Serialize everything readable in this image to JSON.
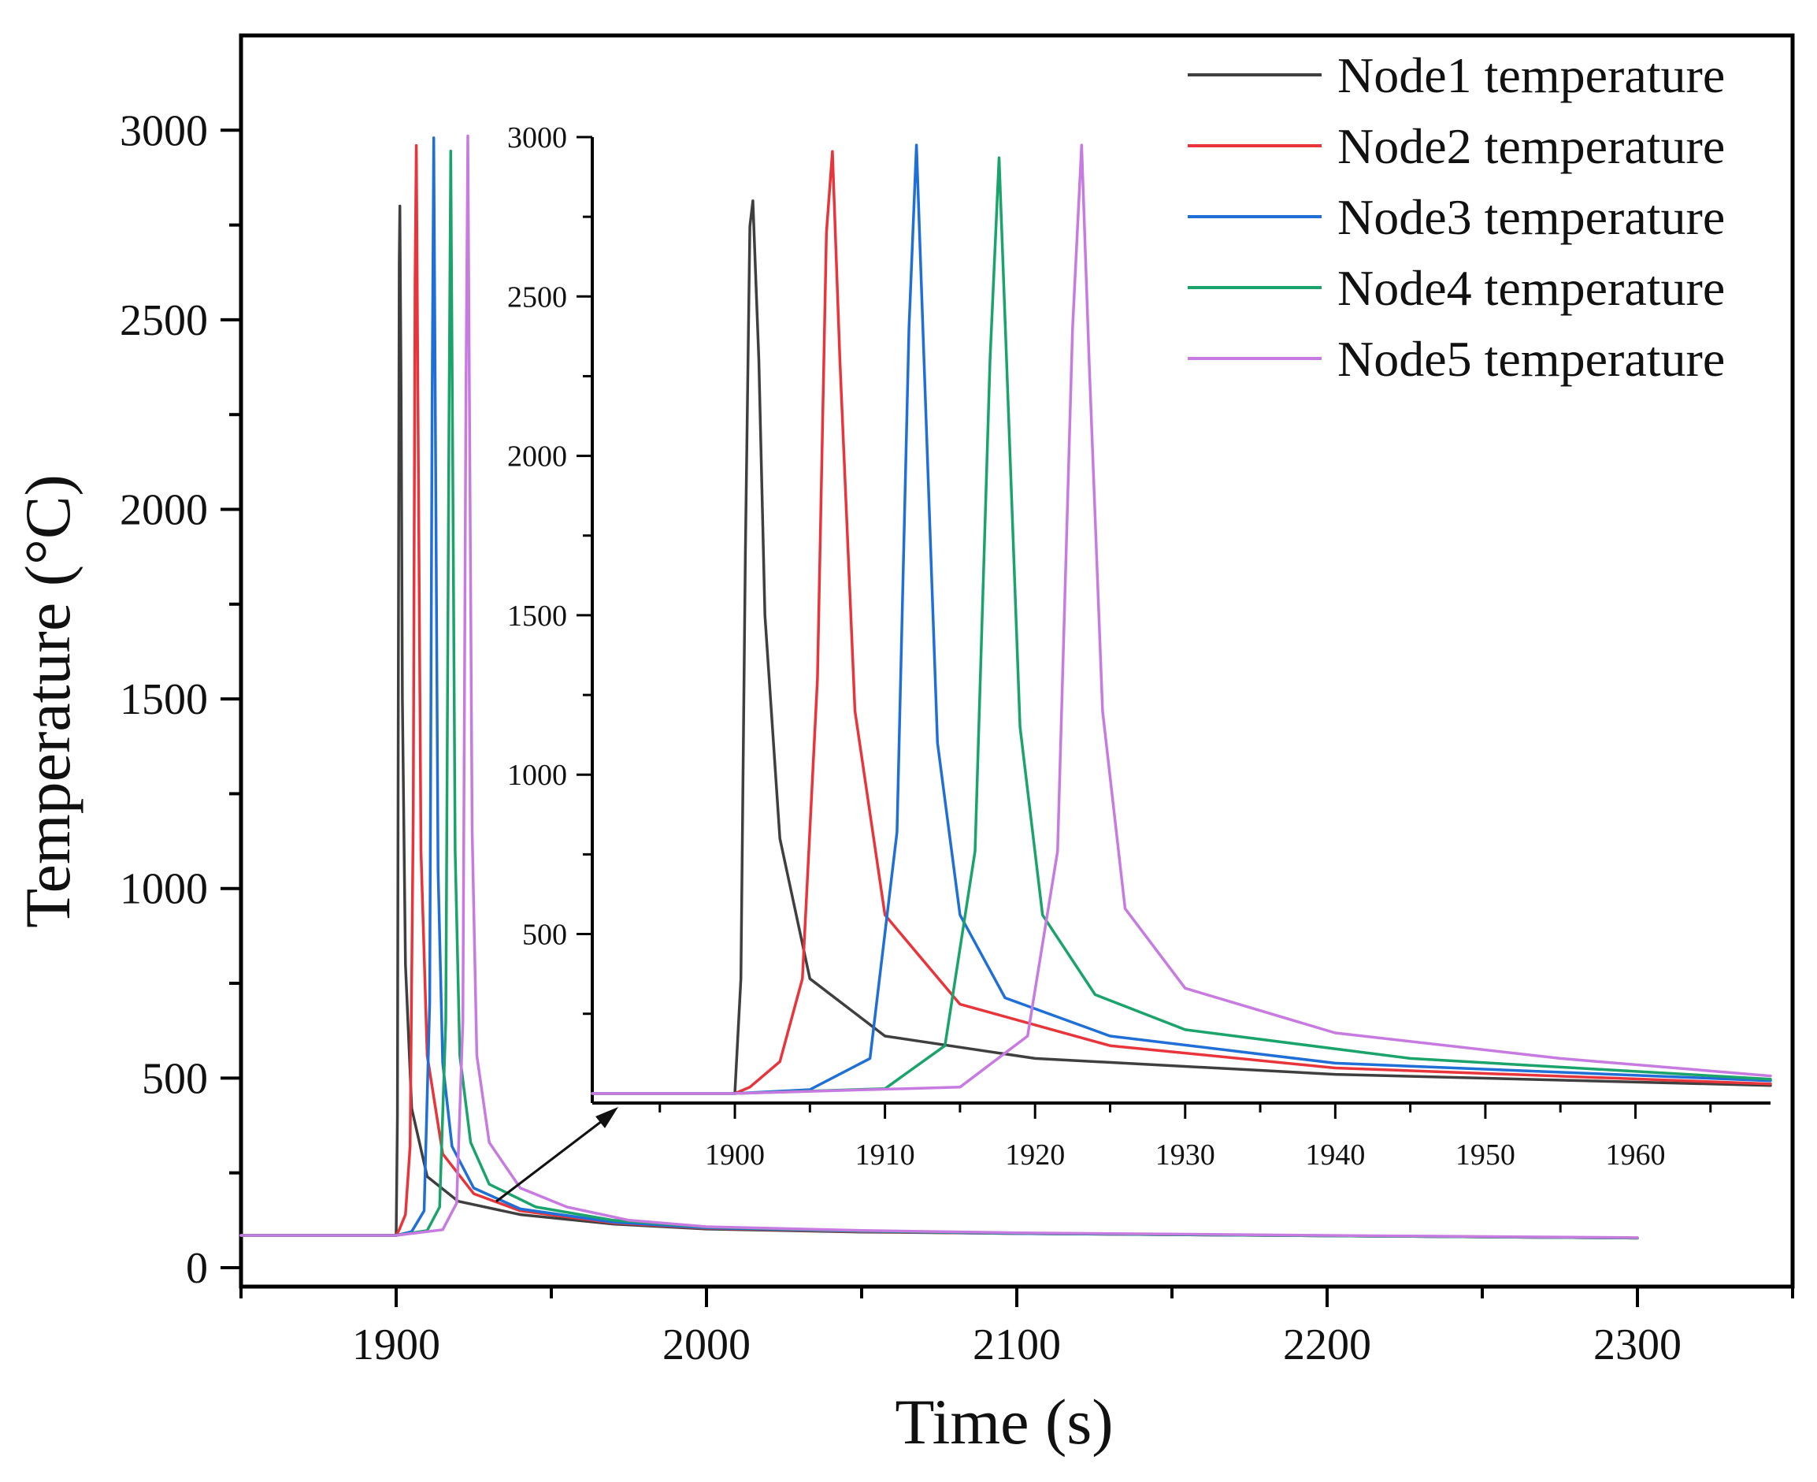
{
  "chart_data": [
    {
      "id": "main",
      "type": "line",
      "title": "",
      "xlabel": "Time (s)",
      "ylabel": "Temperature (°C)",
      "xlim": [
        1850,
        2350
      ],
      "ylim": [
        -50,
        3250
      ],
      "x_ticks": [
        1900,
        2000,
        2100,
        2200,
        2300
      ],
      "x_tick_labels": [
        "1900",
        "2000",
        "2100",
        "2200",
        "2300"
      ],
      "y_ticks": [
        0,
        500,
        1000,
        1500,
        2000,
        2500,
        3000
      ],
      "y_tick_labels": [
        "0",
        "500",
        "1000",
        "1500",
        "2000",
        "2500",
        "3000"
      ],
      "grid": false,
      "legend_position": "top-right",
      "series": [
        {
          "name": "Node1 temperature",
          "color": "#3f3f3f",
          "x": [
            1850,
            1900,
            1900.4,
            1900.7,
            1901,
            1901.2,
            1901.6,
            1902,
            1903,
            1905,
            1910,
            1920,
            1940,
            1970,
            2000,
            2050,
            2100,
            2200,
            2300
          ],
          "y": [
            85,
            85,
            400,
            1600,
            2650,
            2800,
            2300,
            1500,
            800,
            420,
            240,
            175,
            140,
            115,
            102,
            94,
            90,
            84,
            78
          ]
        },
        {
          "name": "Node2 temperature",
          "color": "#e8353b",
          "x": [
            1850,
            1900,
            1901,
            1903,
            1904.5,
            1905.5,
            1906.1,
            1906.5,
            1907,
            1908,
            1910,
            1915,
            1925,
            1940,
            1970,
            2000,
            2050,
            2100,
            2200,
            2300
          ],
          "y": [
            85,
            85,
            100,
            140,
            320,
            1200,
            2600,
            2960,
            2300,
            1100,
            560,
            300,
            195,
            150,
            118,
            104,
            95,
            90,
            84,
            78
          ]
        },
        {
          "name": "Node3 temperature",
          "color": "#1f6fd6",
          "x": [
            1850,
            1900,
            1905,
            1909,
            1910.8,
            1911.6,
            1912.1,
            1912.6,
            1913.5,
            1915,
            1918,
            1925,
            1940,
            1970,
            2000,
            2050,
            2100,
            2200,
            2300
          ],
          "y": [
            85,
            85,
            95,
            150,
            700,
            2300,
            2980,
            2300,
            1050,
            540,
            320,
            210,
            155,
            120,
            105,
            96,
            90,
            84,
            78
          ]
        },
        {
          "name": "Node4 temperature",
          "color": "#1aa36a",
          "x": [
            1850,
            1900,
            1910,
            1914,
            1916,
            1917,
            1917.6,
            1918.1,
            1919,
            1920.5,
            1924,
            1930,
            1945,
            1970,
            2000,
            2050,
            2100,
            2200,
            2300
          ],
          "y": [
            85,
            85,
            98,
            160,
            650,
            2200,
            2945,
            2300,
            1100,
            560,
            330,
            220,
            160,
            125,
            107,
            97,
            91,
            84,
            78
          ]
        },
        {
          "name": "Node5 temperature",
          "color": "#c77ae0",
          "x": [
            1850,
            1900,
            1915,
            1919.5,
            1921.5,
            1922.5,
            1923.1,
            1923.6,
            1924.5,
            1926,
            1930,
            1940,
            1955,
            1975,
            2000,
            2050,
            2100,
            2200,
            2300
          ],
          "y": [
            85,
            85,
            100,
            170,
            650,
            2300,
            2985,
            2300,
            1150,
            560,
            330,
            210,
            160,
            125,
            108,
            98,
            92,
            85,
            79
          ]
        }
      ]
    },
    {
      "id": "inset",
      "type": "line",
      "title": "",
      "xlabel": "",
      "ylabel": "",
      "xlim": [
        1890.5,
        1969
      ],
      "ylim": [
        -30,
        3000
      ],
      "x_ticks": [
        1900,
        1910,
        1920,
        1930,
        1940,
        1950,
        1960
      ],
      "x_tick_labels": [
        "1900",
        "1910",
        "1920",
        "1930",
        "1940",
        "1950",
        "1960"
      ],
      "y_ticks": [
        500,
        1000,
        1500,
        2000,
        2500,
        3000
      ],
      "y_tick_labels": [
        "500",
        "1000",
        "1500",
        "2000",
        "2500",
        "3000"
      ],
      "grid": false,
      "series": [
        {
          "name": "Node1 temperature",
          "color": "#3f3f3f",
          "x": [
            1890.5,
            1900,
            1900.4,
            1900.7,
            1901,
            1901.2,
            1901.6,
            1902,
            1903,
            1905,
            1910,
            1920,
            1940,
            1969
          ],
          "y": [
            0,
            0,
            360,
            1700,
            2720,
            2800,
            2300,
            1500,
            800,
            360,
            180,
            110,
            60,
            25
          ]
        },
        {
          "name": "Node2 temperature",
          "color": "#e8353b",
          "x": [
            1890.5,
            1900,
            1901,
            1903,
            1904.5,
            1905.5,
            1906.1,
            1906.5,
            1907,
            1908,
            1910,
            1915,
            1925,
            1940,
            1969
          ],
          "y": [
            0,
            0,
            20,
            100,
            360,
            1300,
            2700,
            2955,
            2300,
            1200,
            560,
            280,
            150,
            80,
            30
          ]
        },
        {
          "name": "Node3 temperature",
          "color": "#1f6fd6",
          "x": [
            1890.5,
            1900,
            1905,
            1909,
            1910.8,
            1911.6,
            1912.1,
            1912.6,
            1913.5,
            1915,
            1918,
            1925,
            1940,
            1969
          ],
          "y": [
            0,
            0,
            12,
            110,
            820,
            2400,
            2975,
            2300,
            1100,
            560,
            300,
            180,
            95,
            40
          ]
        },
        {
          "name": "Node4 temperature",
          "color": "#1aa36a",
          "x": [
            1890.5,
            1900,
            1910,
            1914,
            1916,
            1917,
            1917.6,
            1918.1,
            1919,
            1920.5,
            1924,
            1930,
            1945,
            1969
          ],
          "y": [
            0,
            0,
            15,
            150,
            760,
            2300,
            2935,
            2300,
            1150,
            560,
            310,
            200,
            110,
            45
          ]
        },
        {
          "name": "Node5 temperature",
          "color": "#c77ae0",
          "x": [
            1890.5,
            1900,
            1915,
            1919.5,
            1921.5,
            1922.5,
            1923.1,
            1923.6,
            1924.5,
            1926,
            1930,
            1940,
            1955,
            1969
          ],
          "y": [
            0,
            0,
            20,
            180,
            760,
            2400,
            2975,
            2300,
            1200,
            580,
            330,
            190,
            110,
            55
          ]
        }
      ]
    }
  ]
}
